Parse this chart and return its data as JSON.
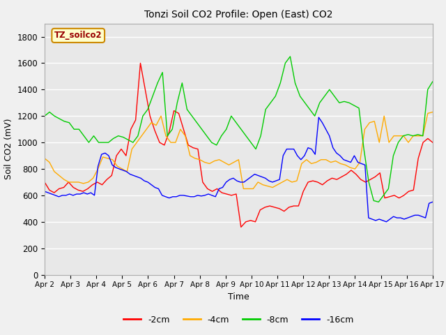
{
  "title": "Tonzi Soil CO2 Profile: Open (East) CO2",
  "xlabel": "Time",
  "ylabel": "Soil CO2 (mV)",
  "ylim": [
    0,
    1900
  ],
  "yticks": [
    0,
    200,
    400,
    600,
    800,
    1000,
    1200,
    1400,
    1600,
    1800
  ],
  "fig_bg": "#f0f0f0",
  "plot_bg": "#e8e8e8",
  "grid_color": "#ffffff",
  "watermark_text": "TZ_soilco2",
  "watermark_bg": "#ffffcc",
  "watermark_border": "#cc8800",
  "legend_labels": [
    "-2cm",
    "-4cm",
    "-8cm",
    "-16cm"
  ],
  "line_colors": [
    "#ff0000",
    "#ffaa00",
    "#00cc00",
    "#0000ff"
  ],
  "xtick_labels": [
    "Apr 2",
    "Apr 3",
    "Apr 4",
    "Apr 5",
    "Apr 6",
    "Apr 7",
    "Apr 8",
    "Apr 9",
    "Apr 10",
    "Apr 11",
    "Apr 12",
    "Apr 13",
    "Apr 14",
    "Apr 15",
    "Apr 16",
    "Apr 17"
  ],
  "series_2cm": [
    700,
    640,
    620,
    650,
    660,
    700,
    660,
    640,
    630,
    650,
    680,
    700,
    680,
    720,
    750,
    900,
    950,
    900,
    1100,
    1170,
    1600,
    1400,
    1200,
    1090,
    1000,
    980,
    1080,
    1240,
    1220,
    1100,
    980,
    960,
    950,
    700,
    650,
    630,
    650,
    620,
    610,
    600,
    610,
    360,
    400,
    410,
    400,
    490,
    510,
    520,
    510,
    500,
    480,
    510,
    520,
    520,
    630,
    700,
    710,
    700,
    680,
    710,
    730,
    720,
    740,
    760,
    790,
    760,
    720,
    700,
    720,
    740,
    770,
    580,
    590,
    600,
    580,
    600,
    630,
    640,
    880,
    1000,
    1030,
    1000
  ],
  "series_4cm": [
    880,
    850,
    780,
    750,
    720,
    700,
    700,
    700,
    690,
    700,
    730,
    800,
    890,
    880,
    870,
    820,
    800,
    780,
    950,
    1000,
    1050,
    1100,
    1150,
    1130,
    1200,
    1050,
    1000,
    1000,
    1100,
    1050,
    900,
    880,
    870,
    850,
    840,
    860,
    870,
    850,
    830,
    850,
    870,
    650,
    650,
    650,
    700,
    680,
    670,
    660,
    680,
    700,
    720,
    700,
    710,
    840,
    870,
    840,
    850,
    870,
    870,
    850,
    860,
    840,
    830,
    810,
    800,
    850,
    1100,
    1150,
    1160,
    1000,
    1200,
    1000,
    1050,
    1050,
    1050,
    1000,
    1050,
    1050,
    1050,
    1220,
    1230
  ],
  "series_8cm": [
    1200,
    1230,
    1200,
    1180,
    1160,
    1150,
    1100,
    1100,
    1050,
    1000,
    1050,
    1000,
    1000,
    1000,
    1030,
    1050,
    1040,
    1020,
    1000,
    1050,
    1200,
    1250,
    1350,
    1450,
    1530,
    1050,
    1100,
    1300,
    1450,
    1250,
    1200,
    1150,
    1100,
    1050,
    1000,
    980,
    1050,
    1100,
    1200,
    1150,
    1100,
    1050,
    1000,
    950,
    1050,
    1250,
    1300,
    1350,
    1450,
    1600,
    1650,
    1450,
    1350,
    1300,
    1250,
    1200,
    1300,
    1350,
    1400,
    1350,
    1300,
    1310,
    1300,
    1280,
    1260,
    950,
    700,
    560,
    550,
    600,
    650,
    900,
    1000,
    1050,
    1060,
    1050,
    1060,
    1050,
    1400,
    1460
  ],
  "series_16cm": [
    630,
    620,
    610,
    600,
    590,
    600,
    600,
    610,
    600,
    610,
    610,
    620,
    610,
    620,
    600,
    820,
    910,
    920,
    900,
    830,
    810,
    800,
    790,
    780,
    760,
    750,
    740,
    730,
    710,
    700,
    680,
    660,
    650,
    600,
    590,
    580,
    590,
    590,
    600,
    600,
    595,
    590,
    590,
    600,
    595,
    600,
    610,
    600,
    590,
    650,
    660,
    700,
    720,
    730,
    710,
    700,
    700,
    720,
    740,
    760,
    750,
    740,
    730,
    710,
    700,
    710,
    720,
    900,
    950,
    950,
    950,
    900,
    870,
    900,
    960,
    950,
    910,
    1190,
    1150,
    1100,
    1050,
    960,
    920,
    900,
    870,
    860,
    850,
    900,
    850,
    840,
    830,
    430,
    420,
    410,
    420,
    410,
    400,
    420,
    440,
    430,
    430,
    420,
    430,
    440,
    450,
    450,
    440,
    430,
    540,
    550
  ]
}
